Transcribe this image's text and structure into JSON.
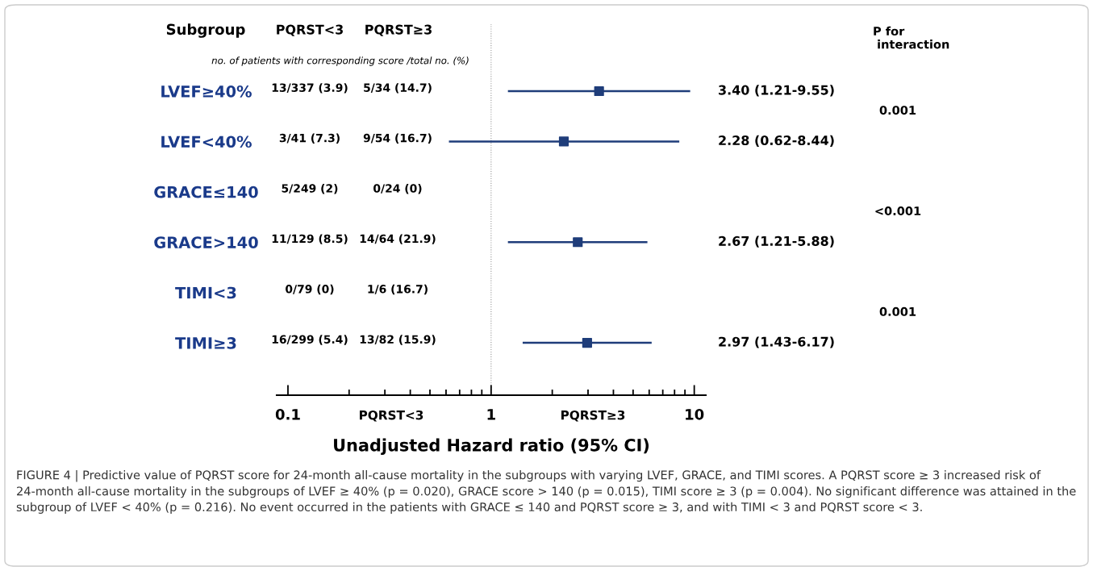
{
  "chart_data": {
    "type": "scatter",
    "orientation": "horizontal",
    "categories": [
      "LVEF≥40%",
      "LVEF<40%",
      "GRACE≤140",
      "GRACE>140",
      "TIMI<3",
      "TIMI≥3"
    ],
    "values": [
      3.4,
      2.28,
      null,
      2.67,
      null,
      2.97
    ],
    "errors": [
      [
        1.21,
        9.55
      ],
      [
        0.62,
        8.44
      ],
      null,
      [
        1.21,
        5.88
      ],
      null,
      [
        1.43,
        6.17
      ]
    ],
    "value_labels": [
      "3.40 (1.21-9.55)",
      "2.28 (0.62-8.44)",
      null,
      "2.67 (1.21-5.88)",
      null,
      "2.97 (1.43-6.17)"
    ],
    "color": "#1f3d7a",
    "marker": "square",
    "log": "x",
    "xlabel": "Unadjusted Hazard ratio (95% CI)",
    "xlim": [
      0.088,
      11.4
    ],
    "xticks": [
      {
        "value": 0.1,
        "label": "0.1"
      },
      {
        "value": 0.2,
        "label": null
      },
      {
        "value": 0.3,
        "label": null
      },
      {
        "value": 0.4,
        "label": null
      },
      {
        "value": 0.5,
        "label": null
      },
      {
        "value": 0.6,
        "label": null
      },
      {
        "value": 0.7,
        "label": null
      },
      {
        "value": 0.8,
        "label": null
      },
      {
        "value": 0.9,
        "label": null
      },
      {
        "value": 1,
        "label": "1"
      },
      {
        "value": 2,
        "label": null
      },
      {
        "value": 3,
        "label": null
      },
      {
        "value": 4,
        "label": null
      },
      {
        "value": 5,
        "label": null
      },
      {
        "value": 6,
        "label": null
      },
      {
        "value": 7,
        "label": null
      },
      {
        "value": 8,
        "label": null
      },
      {
        "value": 9,
        "label": null
      },
      {
        "value": 10,
        "label": "10"
      }
    ],
    "ref_lines": [
      {
        "axis": "x",
        "value": 1,
        "color": "#999999",
        "line_style": "dotted"
      }
    ],
    "grid": false,
    "legend": false,
    "annotations": [
      "Subgroup",
      "PQRST<3",
      "PQRST≥3",
      "no. of patients with corresponding score /total no. (%)",
      "P for\n interaction",
      "13/337 (3.9)",
      "5/34 (14.7)",
      "3/41 (7.3)",
      "9/54 (16.7)",
      "5/249 (2)",
      "0/24 (0)",
      "11/129 (8.5)",
      "14/64 (21.9)",
      "0/79 (0)",
      "1/6 (16.7)",
      "16/299 (5.4)",
      "13/82 (15.9)",
      "0.001",
      "<0.001",
      "0.001",
      "PQRST<3",
      "PQRST≥3",
      "FIGURE 4 | Predictive value of PQRST score for 24-month all-cause mortality in the subgroups with varying LVEF, GRACE, and TIMI scores. A PQRST score ≥ 3 increased risk of 24-month all-cause mortality in the subgroups of LVEF ≥ 40% (p = 0.020), GRACE score > 140 (p = 0.015), TIMI score ≥ 3 (p = 0.004). No significant difference was attained in the subgroup of LVEF < 40% (p = 0.216). No event occurred in the patients with GRACE ≤ 140 and PQRST score ≥ 3, and with TIMI < 3 and PQRST score < 3."
    ]
  }
}
